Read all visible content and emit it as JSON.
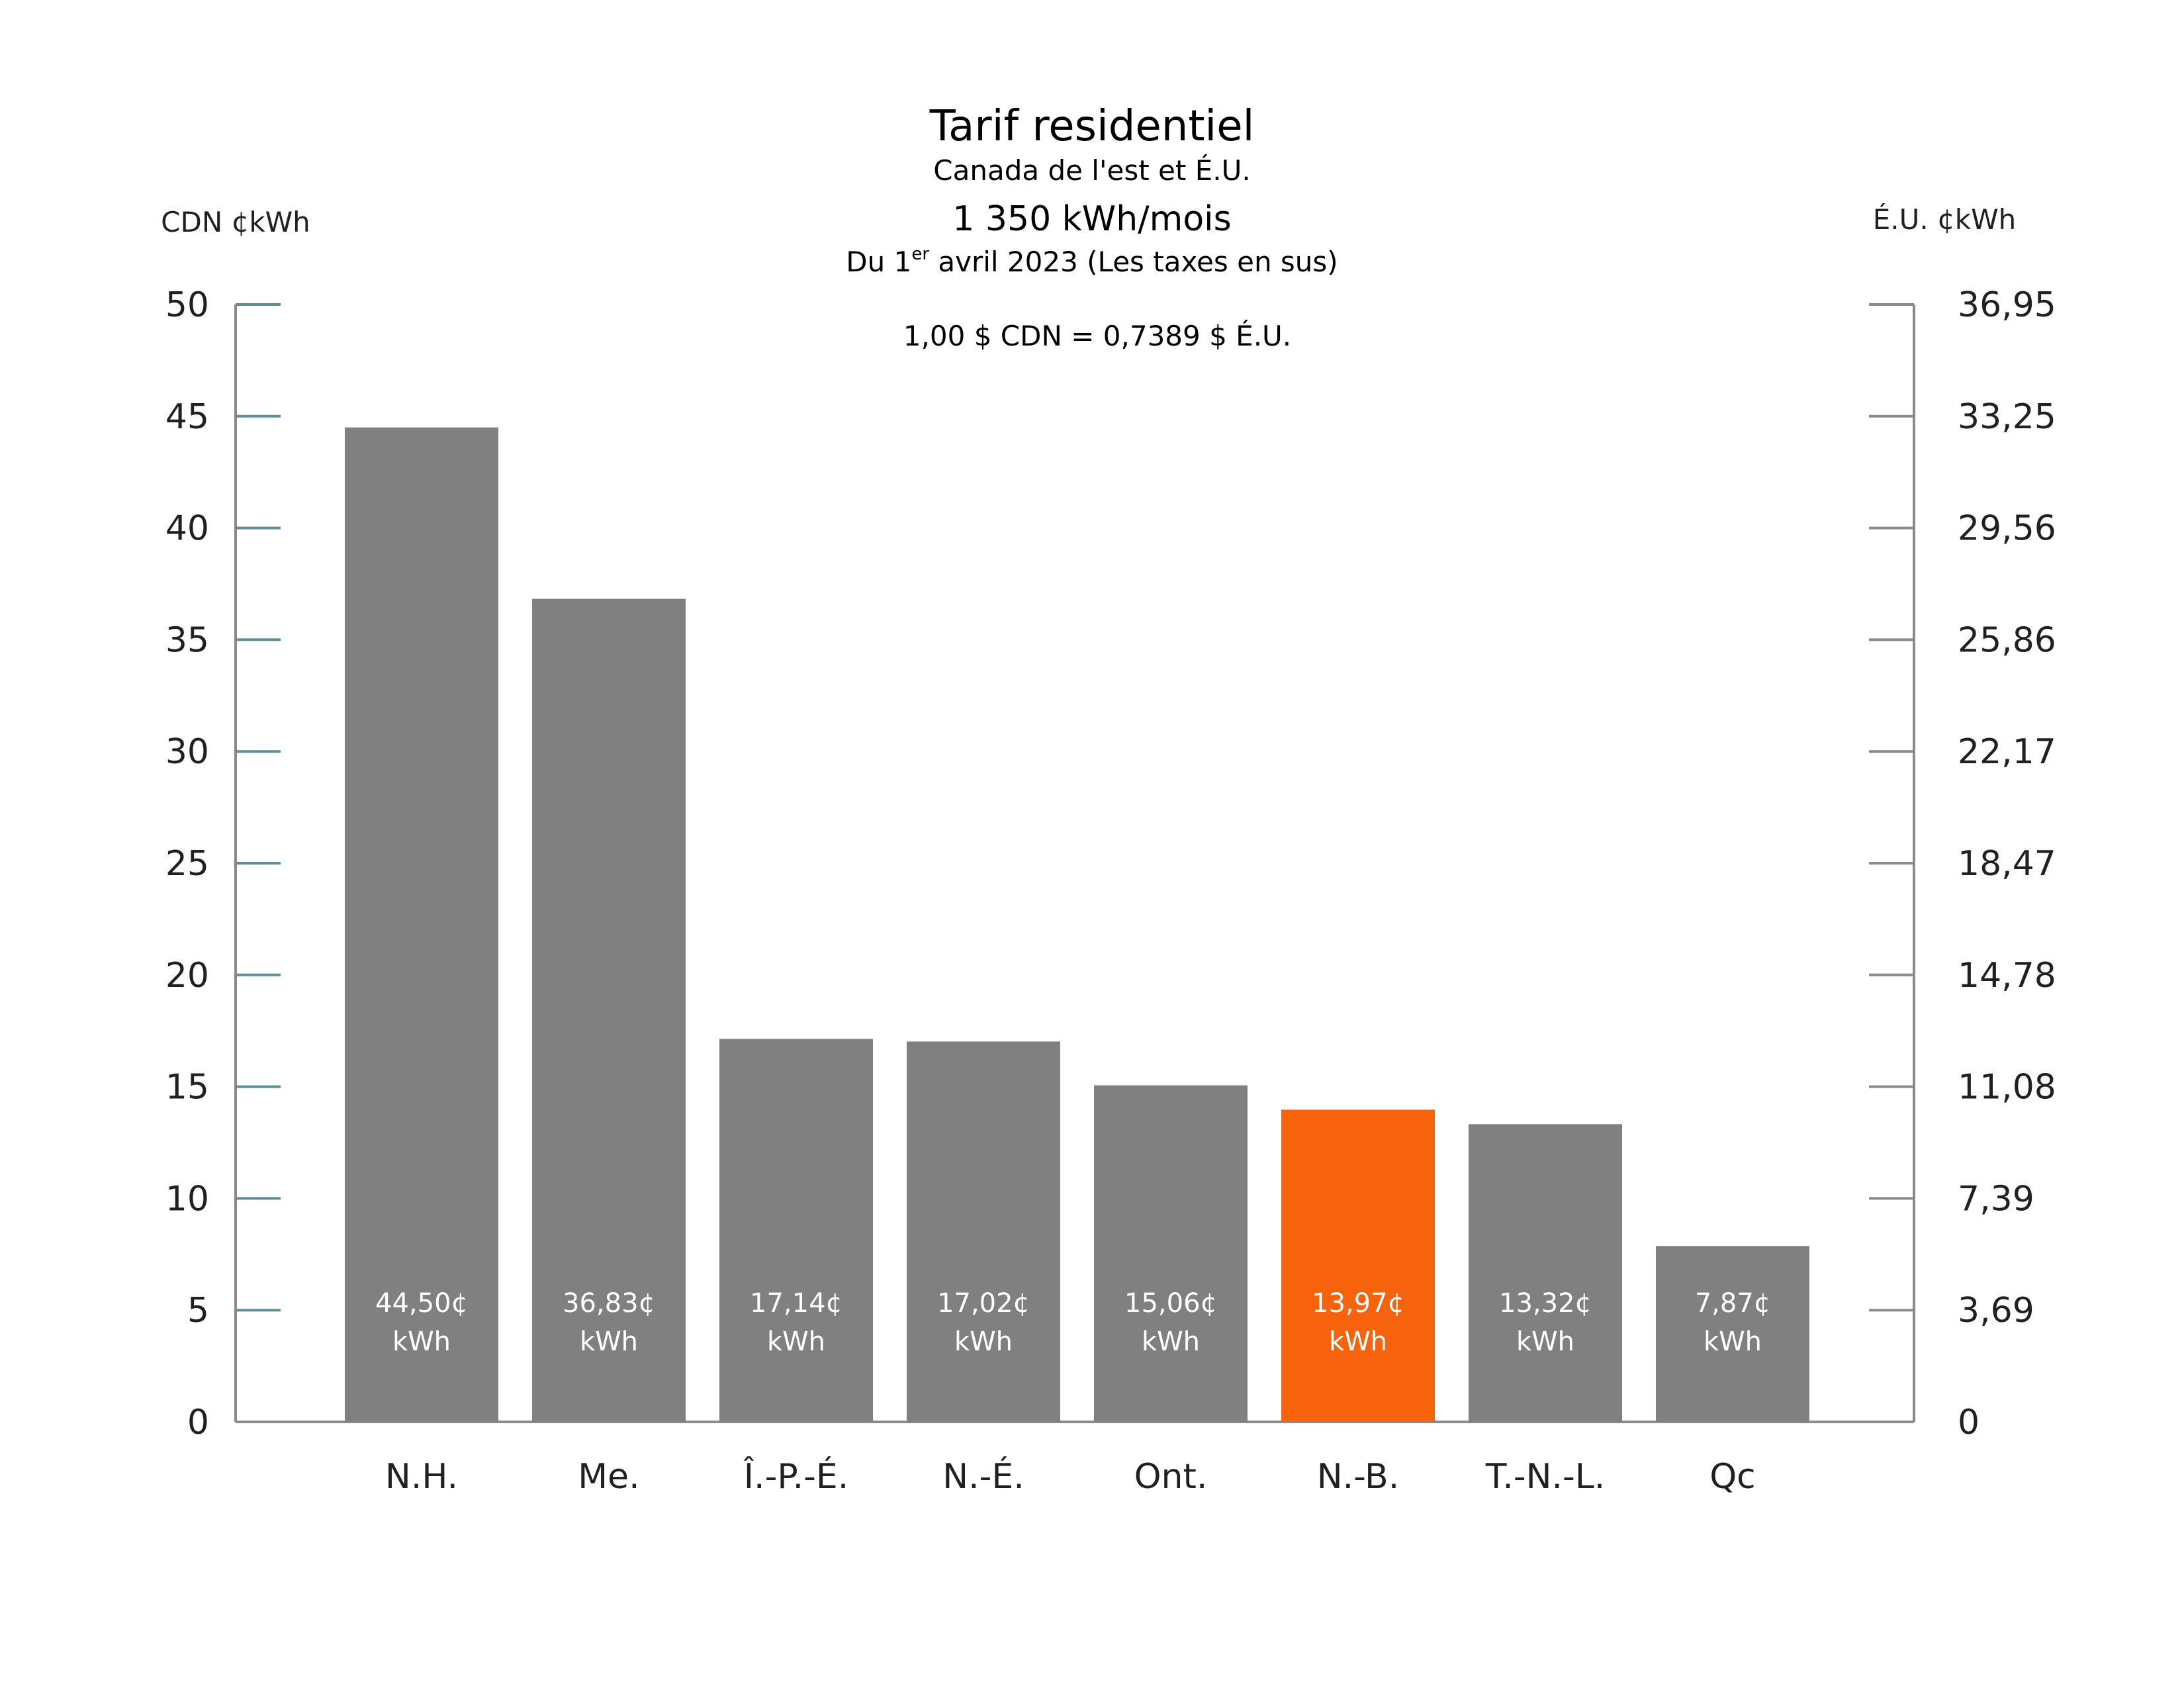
{
  "chart_data": {
    "type": "bar",
    "title": "Tarif residentiel",
    "subtitle": "Canada de l'est et É.U.",
    "subtitle2": "1 350 kWh/mois",
    "date_prefix": "Du 1",
    "date_sup": "er",
    "date_suffix": " avril 2023 (Les taxes en sus)",
    "exchange_note": "1,00 $ CDN = 0,7389 $ É.U.",
    "ylabel_left": "CDN ¢kWh",
    "ylabel_right": "É.U. ¢kWh",
    "ylim": [
      0,
      50
    ],
    "left_ticks": [
      "0",
      "5",
      "10",
      "15",
      "20",
      "25",
      "30",
      "35",
      "40",
      "45",
      "50"
    ],
    "right_ticks": [
      "0",
      "3,69",
      "7,39",
      "11,08",
      "14,78",
      "18,47",
      "22,17",
      "25,86",
      "29,56",
      "33,25",
      "36,95"
    ],
    "categories": [
      "N.H.",
      "Me.",
      "Î.-P.-É.",
      "N.-É.",
      "Ont.",
      "N.-B.",
      "T.-N.-L.",
      "Qc"
    ],
    "values": [
      44.5,
      36.83,
      17.14,
      17.02,
      15.06,
      13.97,
      13.32,
      7.87
    ],
    "value_labels": [
      "44,50¢",
      "36,83¢",
      "17,14¢",
      "17,02¢",
      "15,06¢",
      "13,97¢",
      "13,32¢",
      "7,87¢"
    ],
    "unit_label": "kWh",
    "highlight_index": 5,
    "colors": {
      "bar": "#808080",
      "highlight": "#f7630c",
      "axis": "#8a8a8a",
      "left_tick": "#5f8f94"
    },
    "grid": false,
    "legend": "none"
  }
}
